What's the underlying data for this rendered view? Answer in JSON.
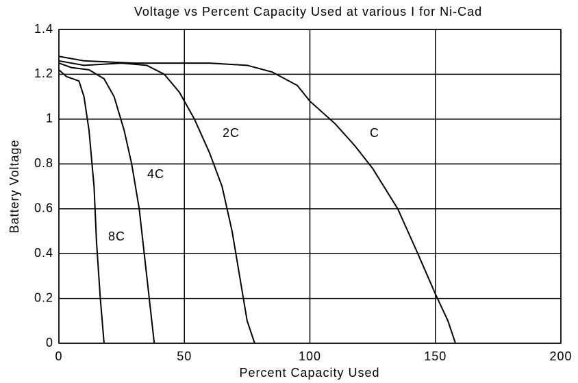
{
  "chart_data": {
    "type": "line",
    "title": "Voltage vs Percent Capacity Used at various I for Ni-Cad",
    "x_label": "Percent Capacity Used",
    "y_label": "Battery Voltage",
    "xlim": [
      0,
      200
    ],
    "xticks": [
      0,
      50,
      100,
      150,
      200
    ],
    "ylim": [
      0,
      1.4
    ],
    "yticks": [
      0,
      0.2,
      0.4,
      0.6,
      0.8,
      1,
      1.2,
      1.4
    ],
    "grid": true,
    "series": [
      {
        "name": "C",
        "color": "#000000",
        "x": [
          0,
          10,
          30,
          60,
          75,
          85,
          95,
          100,
          110,
          118,
          125,
          135,
          143,
          150,
          155,
          158
        ],
        "values": [
          1.28,
          1.26,
          1.25,
          1.25,
          1.24,
          1.21,
          1.15,
          1.08,
          0.98,
          0.88,
          0.78,
          0.6,
          0.4,
          0.22,
          0.1,
          0
        ]
      },
      {
        "name": "2C",
        "color": "#000000",
        "x": [
          0,
          10,
          25,
          35,
          42,
          48,
          54,
          60,
          65,
          69,
          72,
          75,
          78
        ],
        "values": [
          1.26,
          1.24,
          1.25,
          1.24,
          1.2,
          1.12,
          1.0,
          0.85,
          0.7,
          0.5,
          0.3,
          0.1,
          0
        ]
      },
      {
        "name": "4C",
        "color": "#000000",
        "x": [
          0,
          5,
          12,
          18,
          22,
          26,
          29,
          32,
          34,
          36,
          38
        ],
        "values": [
          1.25,
          1.23,
          1.22,
          1.18,
          1.1,
          0.95,
          0.8,
          0.6,
          0.4,
          0.2,
          0
        ]
      },
      {
        "name": "8C",
        "color": "#000000",
        "x": [
          0,
          3,
          8,
          10,
          12,
          14,
          15,
          16.5,
          18
        ],
        "values": [
          1.22,
          1.19,
          1.17,
          1.1,
          0.95,
          0.7,
          0.45,
          0.2,
          0
        ]
      }
    ]
  }
}
